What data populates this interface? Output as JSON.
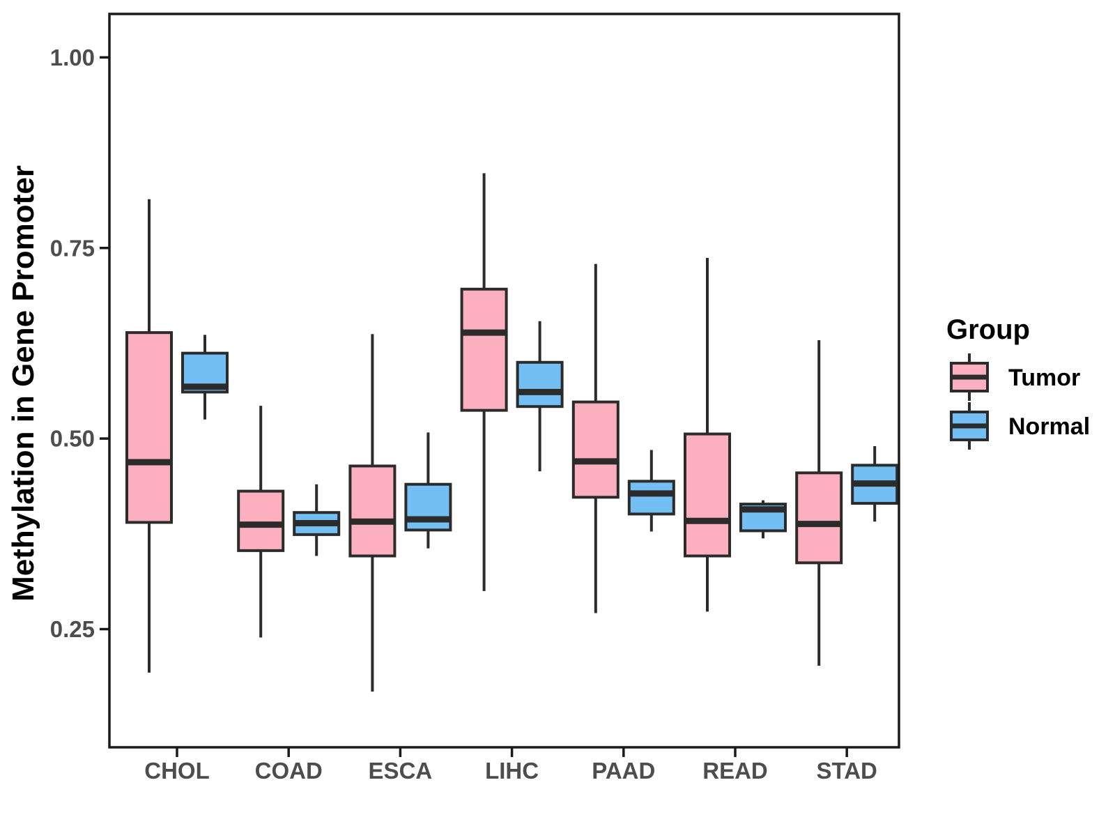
{
  "figure": {
    "background": "#FFFFFF"
  },
  "chart_data": {
    "type": "boxplot",
    "title": "",
    "xlabel": "",
    "ylabel": "Methylation in Gene Promoter",
    "categories": [
      "CHOL",
      "COAD",
      "ESCA",
      "LIHC",
      "PAAD",
      "READ",
      "STAD"
    ],
    "yticks": [
      0.25,
      0.5,
      0.75,
      1.0
    ],
    "ytick_labels": [
      "0.25",
      "0.50",
      "0.75",
      "1.00"
    ],
    "ylim": [
      0.095,
      1.057
    ],
    "grid": false,
    "legend_position": "right",
    "series": [
      {
        "name": "Tumor",
        "color": "#FCAFBE",
        "boxes": [
          {
            "category": "CHOL",
            "whisker_low": 0.193,
            "q1": 0.39,
            "median": 0.469,
            "q3": 0.639,
            "whisker_high": 0.814
          },
          {
            "category": "COAD",
            "whisker_low": 0.239,
            "q1": 0.353,
            "median": 0.387,
            "q3": 0.431,
            "whisker_high": 0.543
          },
          {
            "category": "ESCA",
            "whisker_low": 0.168,
            "q1": 0.346,
            "median": 0.391,
            "q3": 0.464,
            "whisker_high": 0.637
          },
          {
            "category": "LIHC",
            "whisker_low": 0.3,
            "q1": 0.537,
            "median": 0.639,
            "q3": 0.696,
            "whisker_high": 0.848
          },
          {
            "category": "PAAD",
            "whisker_low": 0.271,
            "q1": 0.423,
            "median": 0.47,
            "q3": 0.548,
            "whisker_high": 0.729
          },
          {
            "category": "READ",
            "whisker_low": 0.273,
            "q1": 0.346,
            "median": 0.392,
            "q3": 0.506,
            "whisker_high": 0.737
          },
          {
            "category": "STAD",
            "whisker_low": 0.202,
            "q1": 0.337,
            "median": 0.388,
            "q3": 0.455,
            "whisker_high": 0.629
          }
        ]
      },
      {
        "name": "Normal",
        "color": "#73BFF4",
        "boxes": [
          {
            "category": "CHOL",
            "whisker_low": 0.525,
            "q1": 0.561,
            "median": 0.568,
            "q3": 0.612,
            "whisker_high": 0.636
          },
          {
            "category": "COAD",
            "whisker_low": 0.346,
            "q1": 0.374,
            "median": 0.389,
            "q3": 0.403,
            "whisker_high": 0.44
          },
          {
            "category": "ESCA",
            "whisker_low": 0.356,
            "q1": 0.38,
            "median": 0.394,
            "q3": 0.44,
            "whisker_high": 0.508
          },
          {
            "category": "LIHC",
            "whisker_low": 0.457,
            "q1": 0.542,
            "median": 0.561,
            "q3": 0.6,
            "whisker_high": 0.654
          },
          {
            "category": "PAAD",
            "whisker_low": 0.378,
            "q1": 0.401,
            "median": 0.428,
            "q3": 0.444,
            "whisker_high": 0.485
          },
          {
            "category": "READ",
            "whisker_low": 0.369,
            "q1": 0.379,
            "median": 0.407,
            "q3": 0.414,
            "whisker_high": 0.419
          },
          {
            "category": "STAD",
            "whisker_low": 0.391,
            "q1": 0.415,
            "median": 0.441,
            "q3": 0.465,
            "whisker_high": 0.49
          }
        ]
      }
    ]
  },
  "legend": {
    "title": "Group",
    "items": [
      {
        "label": "Tumor",
        "color": "#FCAFBE"
      },
      {
        "label": "Normal",
        "color": "#73BFF4"
      }
    ]
  },
  "style_colors": {
    "box_stroke": "#2B2B2B",
    "panel_border": "#1A1A1A",
    "tick_mark": "#1A1A1A",
    "tick_label": "#4D4D4D",
    "axis_title": "#000000"
  }
}
